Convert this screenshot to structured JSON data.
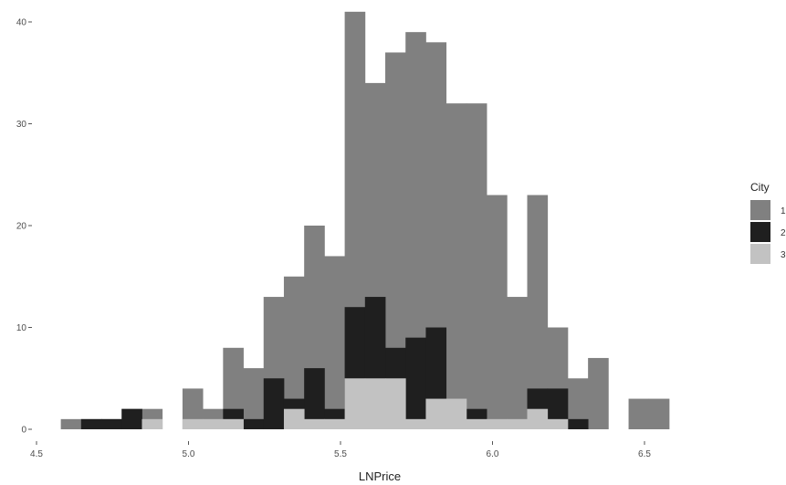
{
  "chart_data": {
    "type": "bar",
    "title": "",
    "xlabel": "LNPrice",
    "ylabel": "",
    "xlim": [
      4.5,
      6.8
    ],
    "ylim": [
      0,
      42
    ],
    "xticks": [
      4.5,
      5.0,
      5.5,
      6.0,
      6.5
    ],
    "xtick_labels": [
      "4.5",
      "5.0",
      "5.5",
      "6.0",
      "6.5"
    ],
    "yticks": [
      0,
      10,
      20,
      30,
      40
    ],
    "ytick_labels": [
      "0",
      "10",
      "20",
      "30",
      "40"
    ],
    "bin_start": 4.58,
    "bin_width": 0.0667,
    "grid": false,
    "legend": {
      "title": "City",
      "position": "right"
    },
    "series": [
      {
        "name": "1",
        "color": "#808080",
        "values": [
          1,
          1,
          1,
          2,
          2,
          0,
          4,
          2,
          8,
          6,
          13,
          15,
          20,
          17,
          41,
          34,
          37,
          39,
          38,
          32,
          32,
          23,
          13,
          23,
          10,
          5,
          7,
          0,
          3,
          3
        ]
      },
      {
        "name": "2",
        "color": "#1f1f1f",
        "values": [
          0,
          1,
          1,
          2,
          0,
          0,
          0,
          0,
          2,
          1,
          5,
          3,
          6,
          2,
          12,
          13,
          8,
          9,
          10,
          0,
          2,
          0,
          0,
          4,
          4,
          1,
          0,
          0,
          0,
          0
        ]
      },
      {
        "name": "3",
        "color": "#c2c2c2",
        "values": [
          0,
          0,
          0,
          0,
          1,
          0,
          1,
          1,
          1,
          0,
          0,
          2,
          1,
          1,
          5,
          5,
          5,
          1,
          3,
          3,
          1,
          1,
          1,
          2,
          1,
          0,
          0,
          0,
          0,
          0
        ]
      }
    ]
  }
}
